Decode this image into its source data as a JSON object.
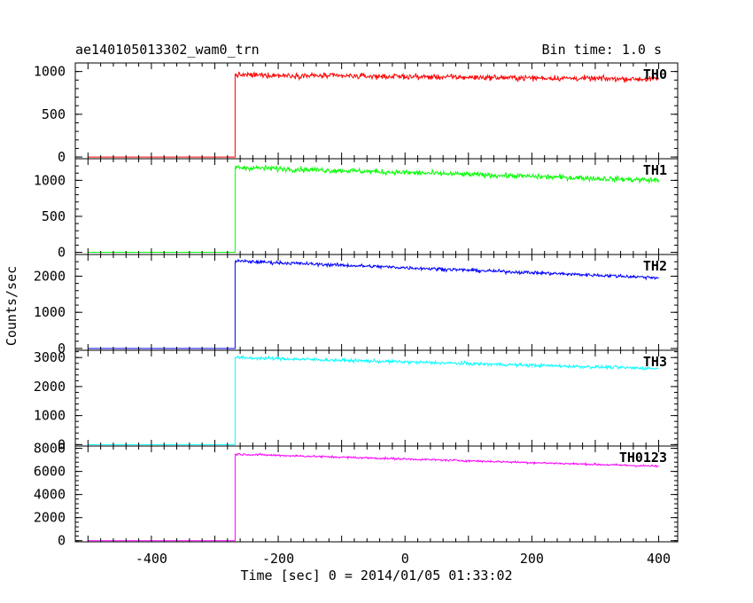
{
  "chart_data": {
    "type": "line",
    "title_left": "ae140105013302_wam0_trn",
    "title_right": "Bin time: 1.0 s",
    "xlabel": "Time [sec] 0 = 2014/01/05 01:33:02",
    "ylabel": "Counts/sec",
    "xlim": [
      -520,
      430
    ],
    "x_ticks": [
      -400,
      -200,
      0,
      200,
      400
    ],
    "onset_time": -268,
    "x_range": [
      -500,
      400
    ],
    "panels": [
      {
        "name": "TH0",
        "color": "#ff0000",
        "ylim": [
          -20,
          1100
        ],
        "y_ticks": [
          0,
          500,
          1000
        ],
        "pre_level": 0,
        "level_start": 960,
        "level_end": 910,
        "noise": 30
      },
      {
        "name": "TH1",
        "color": "#00ff00",
        "ylim": [
          -30,
          1300
        ],
        "y_ticks": [
          0,
          500,
          1000
        ],
        "pre_level": 0,
        "level_start": 1180,
        "level_end": 1000,
        "noise": 35
      },
      {
        "name": "TH2",
        "color": "#0000ff",
        "ylim": [
          -50,
          2600
        ],
        "y_ticks": [
          0,
          1000,
          2000
        ],
        "pre_level": 0,
        "level_start": 2420,
        "level_end": 1960,
        "noise": 45
      },
      {
        "name": "TH3",
        "color": "#00ffff",
        "ylim": [
          -50,
          3250
        ],
        "y_ticks": [
          0,
          1000,
          2000,
          3000
        ],
        "pre_level": 0,
        "level_start": 3000,
        "level_end": 2620,
        "noise": 55
      },
      {
        "name": "TH0123",
        "color": "#ff00ff",
        "ylim": [
          -100,
          8200
        ],
        "y_ticks": [
          0,
          2000,
          4000,
          6000,
          8000
        ],
        "pre_level": 0,
        "level_start": 7500,
        "level_end": 6450,
        "noise": 85
      }
    ]
  }
}
